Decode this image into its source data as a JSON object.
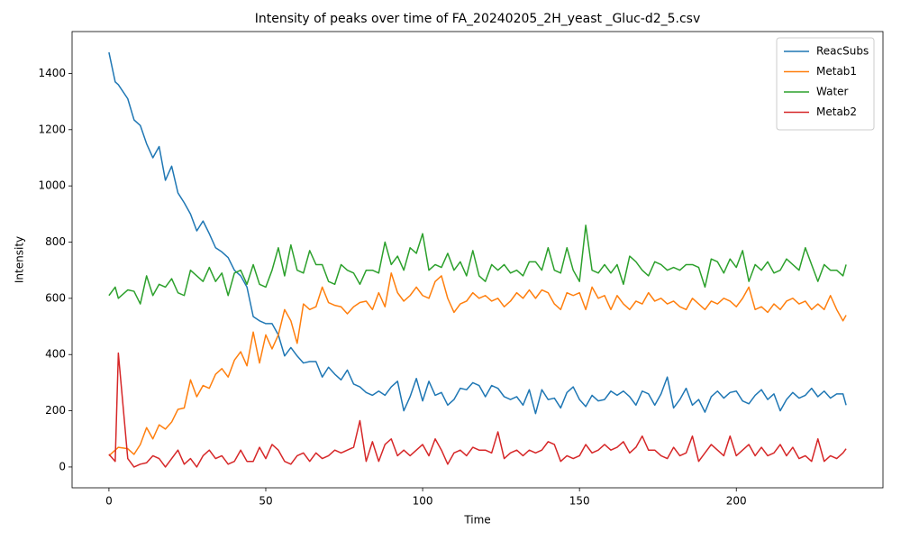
{
  "chart_data": {
    "type": "line",
    "title": "Intensity of peaks over time of FA_20240205_2H_yeast _Gluc-d2_5.csv",
    "xlabel": "Time",
    "ylabel": "Intensity",
    "xlim": [
      -11.75,
      246.75
    ],
    "ylim": [
      -74,
      1549
    ],
    "xticks": [
      0,
      50,
      100,
      150,
      200
    ],
    "yticks": [
      0,
      200,
      400,
      600,
      800,
      1000,
      1200,
      1400
    ],
    "legend": "upper right",
    "grid": false,
    "x": [
      0,
      2,
      3,
      6,
      8,
      10,
      12,
      14,
      16,
      18,
      20,
      22,
      24,
      26,
      28,
      30,
      32,
      34,
      36,
      38,
      40,
      42,
      44,
      46,
      48,
      50,
      52,
      54,
      56,
      58,
      60,
      62,
      64,
      66,
      68,
      70,
      72,
      74,
      76,
      78,
      80,
      82,
      84,
      86,
      88,
      90,
      92,
      94,
      96,
      98,
      100,
      102,
      104,
      106,
      108,
      110,
      112,
      114,
      116,
      118,
      120,
      122,
      124,
      126,
      128,
      130,
      132,
      134,
      136,
      138,
      140,
      142,
      144,
      146,
      148,
      150,
      152,
      154,
      156,
      158,
      160,
      162,
      164,
      166,
      168,
      170,
      172,
      174,
      176,
      178,
      180,
      182,
      184,
      186,
      188,
      190,
      192,
      194,
      196,
      198,
      200,
      202,
      204,
      206,
      208,
      210,
      212,
      214,
      216,
      218,
      220,
      222,
      224,
      226,
      228,
      230,
      232,
      234,
      235
    ],
    "series": [
      {
        "name": "ReacSubs",
        "color": "#1f77b4",
        "values": [
          1475,
          1370,
          1360,
          1310,
          1235,
          1215,
          1150,
          1100,
          1140,
          1020,
          1070,
          975,
          940,
          900,
          840,
          875,
          830,
          780,
          765,
          745,
          700,
          680,
          640,
          535,
          520,
          510,
          510,
          470,
          395,
          425,
          395,
          370,
          375,
          375,
          320,
          355,
          330,
          310,
          345,
          295,
          285,
          265,
          255,
          270,
          255,
          285,
          305,
          200,
          250,
          315,
          235,
          305,
          255,
          265,
          220,
          240,
          280,
          275,
          300,
          290,
          250,
          290,
          280,
          250,
          240,
          250,
          220,
          275,
          190,
          275,
          240,
          245,
          210,
          265,
          285,
          240,
          215,
          255,
          235,
          240,
          270,
          255,
          270,
          250,
          220,
          270,
          260,
          220,
          260,
          320,
          210,
          240,
          280,
          220,
          240,
          195,
          250,
          270,
          245,
          265,
          270,
          235,
          225,
          255,
          275,
          240,
          260,
          200,
          240,
          265,
          245,
          255,
          280,
          250,
          270,
          245,
          260,
          260,
          220
        ]
      },
      {
        "name": "Metab1",
        "color": "#ff7f0e",
        "values": [
          40,
          60,
          70,
          65,
          45,
          80,
          140,
          100,
          150,
          135,
          160,
          205,
          210,
          310,
          250,
          290,
          280,
          330,
          350,
          320,
          380,
          410,
          360,
          480,
          370,
          470,
          420,
          470,
          560,
          520,
          440,
          580,
          560,
          570,
          640,
          585,
          575,
          570,
          545,
          570,
          585,
          590,
          560,
          620,
          570,
          690,
          620,
          590,
          610,
          640,
          610,
          600,
          660,
          680,
          600,
          550,
          580,
          590,
          620,
          600,
          610,
          590,
          600,
          570,
          590,
          620,
          600,
          630,
          600,
          630,
          620,
          580,
          560,
          620,
          610,
          620,
          560,
          640,
          600,
          610,
          560,
          610,
          580,
          560,
          590,
          580,
          620,
          590,
          600,
          580,
          590,
          570,
          560,
          600,
          580,
          560,
          590,
          580,
          600,
          590,
          570,
          600,
          640,
          560,
          570,
          550,
          580,
          560,
          590,
          600,
          580,
          590,
          560,
          580,
          560,
          610,
          560,
          520,
          540
        ]
      },
      {
        "name": "Water",
        "color": "#2ca02c",
        "values": [
          610,
          640,
          600,
          630,
          625,
          580,
          680,
          610,
          650,
          640,
          670,
          620,
          610,
          700,
          680,
          660,
          710,
          660,
          690,
          610,
          690,
          700,
          650,
          720,
          650,
          640,
          700,
          780,
          680,
          790,
          700,
          690,
          770,
          720,
          720,
          660,
          650,
          720,
          700,
          690,
          650,
          700,
          700,
          690,
          800,
          720,
          750,
          700,
          780,
          760,
          830,
          700,
          720,
          710,
          760,
          700,
          730,
          680,
          770,
          680,
          660,
          720,
          700,
          720,
          690,
          700,
          680,
          730,
          730,
          700,
          780,
          700,
          690,
          780,
          700,
          660,
          860,
          700,
          690,
          720,
          690,
          720,
          650,
          750,
          730,
          700,
          680,
          730,
          720,
          700,
          710,
          700,
          720,
          720,
          710,
          640,
          740,
          730,
          690,
          740,
          710,
          770,
          660,
          720,
          700,
          730,
          690,
          700,
          740,
          720,
          700,
          780,
          720,
          660,
          720,
          700,
          700,
          680,
          720
        ]
      },
      {
        "name": "Metab2",
        "color": "#d62728",
        "values": [
          45,
          20,
          405,
          30,
          0,
          10,
          15,
          40,
          30,
          0,
          30,
          60,
          10,
          30,
          0,
          40,
          60,
          30,
          40,
          10,
          20,
          60,
          20,
          20,
          70,
          30,
          80,
          60,
          20,
          10,
          40,
          50,
          20,
          50,
          30,
          40,
          60,
          50,
          60,
          70,
          165,
          20,
          90,
          20,
          80,
          100,
          40,
          60,
          40,
          60,
          80,
          40,
          100,
          60,
          10,
          50,
          60,
          40,
          70,
          60,
          60,
          50,
          125,
          30,
          50,
          60,
          40,
          60,
          50,
          60,
          90,
          80,
          20,
          40,
          30,
          40,
          80,
          50,
          60,
          80,
          60,
          70,
          90,
          50,
          70,
          110,
          60,
          60,
          40,
          30,
          70,
          40,
          50,
          110,
          20,
          50,
          80,
          60,
          40,
          110,
          40,
          60,
          80,
          40,
          70,
          40,
          50,
          80,
          40,
          70,
          30,
          40,
          20,
          100,
          20,
          40,
          30,
          50,
          65
        ]
      }
    ]
  }
}
